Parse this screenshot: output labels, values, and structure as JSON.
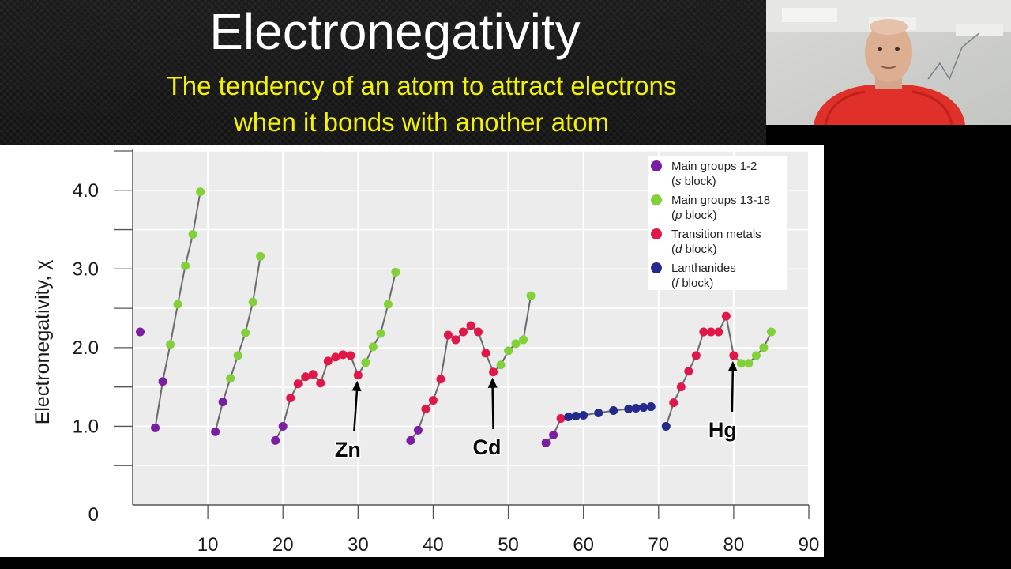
{
  "slide": {
    "title": "Electronegativity",
    "subtitle_line1": "The tendency of an atom to attract electrons",
    "subtitle_line2": "when it bonds with another atom"
  },
  "colors": {
    "s": "#7b1fa2",
    "p": "#82d13a",
    "d": "#e0184a",
    "f": "#242a8c",
    "line": "#6b6b6b",
    "plot_bg": "#ececec"
  },
  "chart_data": {
    "type": "scatter",
    "title": "",
    "xlabel": "",
    "ylabel": "Electronegativity, χ",
    "xlim": [
      0,
      90
    ],
    "ylim": [
      0,
      4.5
    ],
    "x_ticks": [
      10,
      20,
      30,
      40,
      50,
      60,
      70,
      80,
      90
    ],
    "y_ticks": [
      {
        "value": 0,
        "label": "0"
      },
      {
        "value": 1,
        "label": "1.0"
      },
      {
        "value": 2,
        "label": "2.0"
      },
      {
        "value": 3,
        "label": "3.0"
      },
      {
        "value": 4,
        "label": "4.0"
      }
    ],
    "grid": true,
    "legend_position": "top-right",
    "legend": [
      {
        "key": "s",
        "line1": "Main groups 1-2",
        "italic": "s",
        "rest": " block)"
      },
      {
        "key": "p",
        "line1": "Main groups 13-18",
        "italic": "p",
        "rest": " block)"
      },
      {
        "key": "d",
        "line1": "Transition metals",
        "italic": "d",
        "rest": " block)"
      },
      {
        "key": "f",
        "line1": "Lanthanides",
        "italic": "f",
        "rest": " block)"
      }
    ],
    "points": [
      [
        1,
        2.2,
        "s"
      ],
      [
        3,
        0.98,
        "s"
      ],
      [
        4,
        1.57,
        "s"
      ],
      [
        5,
        2.04,
        "p"
      ],
      [
        6,
        2.55,
        "p"
      ],
      [
        7,
        3.04,
        "p"
      ],
      [
        8,
        3.44,
        "p"
      ],
      [
        9,
        3.98,
        "p"
      ],
      [
        11,
        0.93,
        "s"
      ],
      [
        12,
        1.31,
        "s"
      ],
      [
        13,
        1.61,
        "p"
      ],
      [
        14,
        1.9,
        "p"
      ],
      [
        15,
        2.19,
        "p"
      ],
      [
        16,
        2.58,
        "p"
      ],
      [
        17,
        3.16,
        "p"
      ],
      [
        19,
        0.82,
        "s"
      ],
      [
        20,
        1.0,
        "s"
      ],
      [
        21,
        1.36,
        "d"
      ],
      [
        22,
        1.54,
        "d"
      ],
      [
        23,
        1.63,
        "d"
      ],
      [
        24,
        1.66,
        "d"
      ],
      [
        25,
        1.55,
        "d"
      ],
      [
        26,
        1.83,
        "d"
      ],
      [
        27,
        1.88,
        "d"
      ],
      [
        28,
        1.91,
        "d"
      ],
      [
        29,
        1.9,
        "d"
      ],
      [
        30,
        1.65,
        "d"
      ],
      [
        31,
        1.81,
        "p"
      ],
      [
        32,
        2.01,
        "p"
      ],
      [
        33,
        2.18,
        "p"
      ],
      [
        34,
        2.55,
        "p"
      ],
      [
        35,
        2.96,
        "p"
      ],
      [
        37,
        0.82,
        "s"
      ],
      [
        38,
        0.95,
        "s"
      ],
      [
        39,
        1.22,
        "d"
      ],
      [
        40,
        1.33,
        "d"
      ],
      [
        41,
        1.6,
        "d"
      ],
      [
        42,
        2.16,
        "d"
      ],
      [
        43,
        2.1,
        "d"
      ],
      [
        44,
        2.2,
        "d"
      ],
      [
        45,
        2.28,
        "d"
      ],
      [
        46,
        2.2,
        "d"
      ],
      [
        47,
        1.93,
        "d"
      ],
      [
        48,
        1.69,
        "d"
      ],
      [
        49,
        1.78,
        "p"
      ],
      [
        50,
        1.96,
        "p"
      ],
      [
        51,
        2.05,
        "p"
      ],
      [
        52,
        2.1,
        "p"
      ],
      [
        53,
        2.66,
        "p"
      ],
      [
        55,
        0.79,
        "s"
      ],
      [
        56,
        0.89,
        "s"
      ],
      [
        57,
        1.1,
        "d"
      ],
      [
        58,
        1.12,
        "f"
      ],
      [
        59,
        1.13,
        "f"
      ],
      [
        60,
        1.14,
        "f"
      ],
      [
        62,
        1.17,
        "f"
      ],
      [
        64,
        1.2,
        "f"
      ],
      [
        66,
        1.22,
        "f"
      ],
      [
        67,
        1.23,
        "f"
      ],
      [
        68,
        1.24,
        "f"
      ],
      [
        69,
        1.25,
        "f"
      ],
      [
        71,
        1.0,
        "f"
      ],
      [
        72,
        1.3,
        "d"
      ],
      [
        73,
        1.5,
        "d"
      ],
      [
        74,
        1.7,
        "d"
      ],
      [
        75,
        1.9,
        "d"
      ],
      [
        76,
        2.2,
        "d"
      ],
      [
        77,
        2.2,
        "d"
      ],
      [
        78,
        2.2,
        "d"
      ],
      [
        79,
        2.4,
        "d"
      ],
      [
        80,
        1.9,
        "d"
      ],
      [
        81,
        1.8,
        "p"
      ],
      [
        82,
        1.8,
        "p"
      ],
      [
        83,
        1.9,
        "p"
      ],
      [
        84,
        2.0,
        "p"
      ],
      [
        85,
        2.2,
        "p"
      ]
    ],
    "segments": [
      [
        3,
        9
      ],
      [
        11,
        17
      ],
      [
        19,
        35
      ],
      [
        37,
        53
      ],
      [
        55,
        69
      ],
      [
        71,
        85
      ]
    ],
    "annotations": [
      {
        "label": "Zn",
        "x": 30,
        "y": 1.65
      },
      {
        "label": "Cd",
        "x": 48,
        "y": 1.69
      },
      {
        "label": "Hg",
        "x": 80,
        "y": 1.9
      }
    ]
  }
}
